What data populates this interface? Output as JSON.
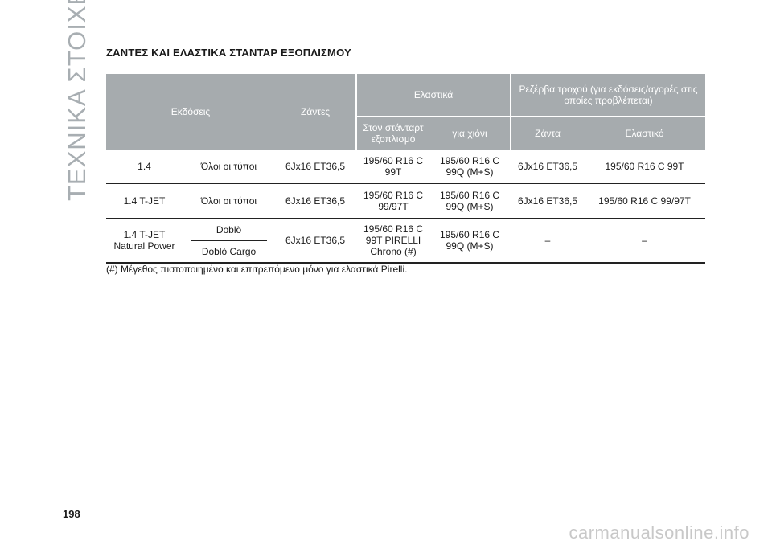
{
  "side_title": "ΤΕΧΝΙΚΑ ΣΤΟΙΧΕΙΑ",
  "heading": "ΖΑΝΤΕΣ ΚΑΙ ΕΛΑΣΤΙΚΑ ΣΤΑΝΤΑΡ ΕΞΟΠΛΙΣΜΟΥ",
  "table": {
    "headers": {
      "versions": "Εκδόσεις",
      "rims": "Ζάντες",
      "tyres": "Ελαστικά",
      "spare": "Ρεζέρβα τροχού (για εκδόσεις/αγορές στις οποίες προβλέπεται)",
      "tyres_standard": "Στον στάνταρτ εξοπλισμό",
      "tyres_snow": "για χιόνι",
      "spare_rim": "Ζάντα",
      "spare_tyre": "Ελαστικό"
    },
    "rows": [
      {
        "version": "1.4",
        "model": "Όλοι οι τύποι",
        "rim": "6Jx16 ET36,5",
        "tyre_std": "195/60 R16 C 99T",
        "tyre_snow": "195/60 R16 C 99Q (M+S)",
        "spare_rim": "6Jx16 ET36,5",
        "spare_tyre": "195/60 R16 C 99T"
      },
      {
        "version": "1.4 T-JET",
        "model": "Όλοι οι τύποι",
        "rim": "6Jx16 ET36,5",
        "tyre_std": "195/60 R16 C 99/97T",
        "tyre_snow": "195/60 R16 C 99Q (M+S)",
        "spare_rim": "6Jx16 ET36,5",
        "spare_tyre": "195/60 R16 C 99/97T"
      },
      {
        "version": "1.4 T-JET Natural Power",
        "model_top": "Doblò",
        "model_bottom": "Doblò Cargo",
        "rim": "6Jx16 ET36,5",
        "tyre_std": "195/60 R16 C 99T PIRELLI Chrono (#)",
        "tyre_snow": "195/60 R16 C 99Q (M+S)",
        "spare_rim": "–",
        "spare_tyre": "–"
      }
    ]
  },
  "footnote": "(#) Μέγεθος πιστοποιημένο και επιτρεπόμενο μόνο για ελαστικά Pirelli.",
  "page_number": "198",
  "watermark": "carmanualsonline.info"
}
